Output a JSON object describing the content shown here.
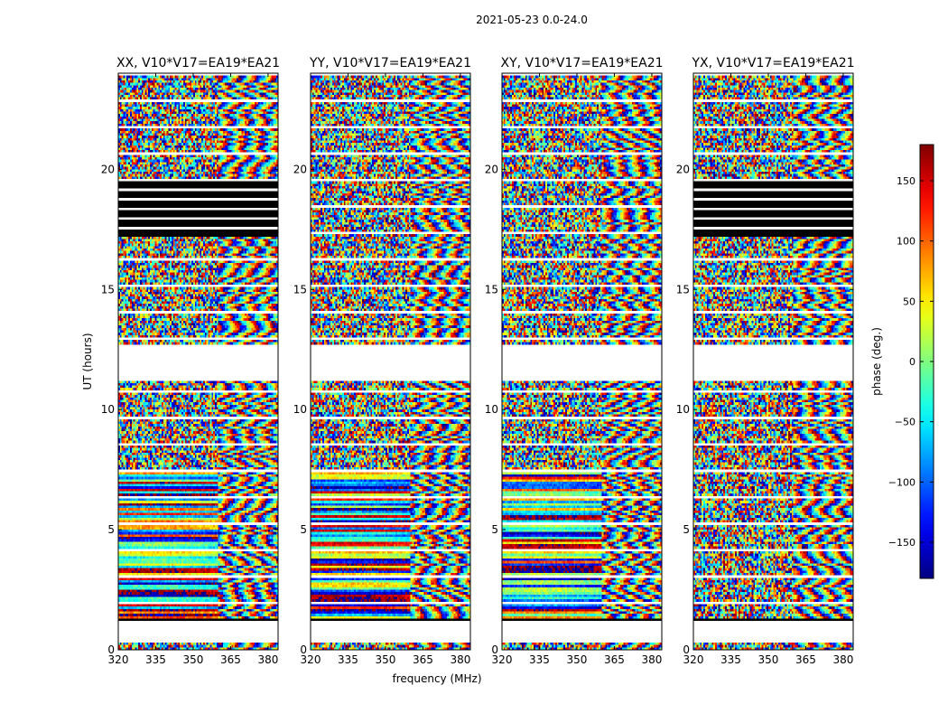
{
  "figure": {
    "suptitle": "2021-05-23 0.0-24.0"
  },
  "chart_data": {
    "type": "heatmap",
    "panels": [
      {
        "title": "XX, V10*V17=EA19*EA21",
        "pol": "XX"
      },
      {
        "title": "YY, V10*V17=EA19*EA21",
        "pol": "YY"
      },
      {
        "title": "XY, V10*V17=EA19*EA21",
        "pol": "XY"
      },
      {
        "title": "YX, V10*V17=EA19*EA21",
        "pol": "YX"
      }
    ],
    "xlabel": "frequency (MHz)",
    "ylabel": "UT (hours)",
    "xlim": [
      320,
      384
    ],
    "ylim": [
      0,
      24
    ],
    "xticks": [
      320,
      335,
      350,
      365,
      380
    ],
    "yticks": [
      0,
      5,
      10,
      15,
      20
    ],
    "colorbar": {
      "label": "phase (deg.)",
      "range": [
        -180,
        180
      ],
      "ticks": [
        150,
        100,
        50,
        0,
        -50,
        -100,
        -150
      ],
      "tick_labels": [
        "150",
        "100",
        "50",
        "0",
        "−50",
        "−100",
        "−150"
      ],
      "colormap": "jet"
    },
    "flagged_hours_white": [
      [
        0.3,
        1.2
      ],
      [
        11.2,
        12.7
      ]
    ],
    "flagged_hours_black": [
      [
        1.2,
        1.3
      ]
    ],
    "black_bands_hours": [
      [
        17.2,
        19.6
      ]
    ],
    "black_band_panels": [
      "XX",
      "YX"
    ]
  }
}
